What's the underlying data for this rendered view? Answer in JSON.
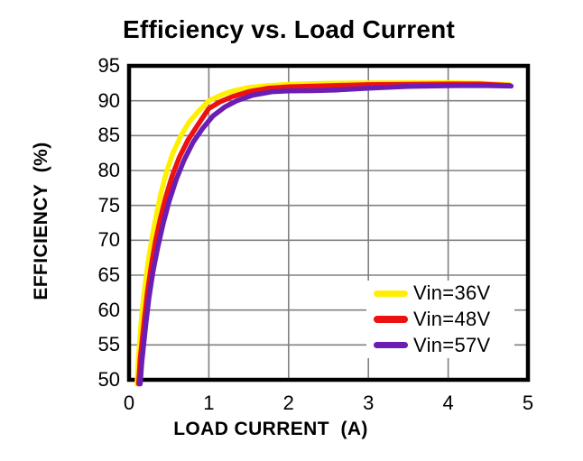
{
  "chart_data": {
    "type": "line",
    "title": "Efficiency vs. Load Current",
    "xlabel": "LOAD CURRENT  (A)",
    "ylabel": "EFFICIENCY  (%)",
    "xlim": [
      0,
      5
    ],
    "ylim": [
      50,
      95
    ],
    "xticks": [
      0,
      1,
      2,
      3,
      4,
      5
    ],
    "yticks": [
      50,
      55,
      60,
      65,
      70,
      75,
      80,
      85,
      90,
      95
    ],
    "grid": true,
    "grid_color": "#808080",
    "border_color": "#000000",
    "legend_position": "inside-lower-right",
    "series": [
      {
        "name": "Vin=36V",
        "color": "#FFF000",
        "points": [
          [
            0.1,
            49.4
          ],
          [
            0.12,
            53.5
          ],
          [
            0.16,
            59.5
          ],
          [
            0.2,
            63.5
          ],
          [
            0.24,
            67.0
          ],
          [
            0.29,
            70.5
          ],
          [
            0.34,
            73.5
          ],
          [
            0.4,
            76.8
          ],
          [
            0.47,
            79.8
          ],
          [
            0.55,
            82.5
          ],
          [
            0.65,
            85.0
          ],
          [
            0.75,
            86.9
          ],
          [
            0.87,
            88.5
          ],
          [
            1.0,
            90.0
          ],
          [
            1.15,
            90.8
          ],
          [
            1.3,
            91.4
          ],
          [
            1.5,
            91.9
          ],
          [
            1.75,
            92.2
          ],
          [
            2.0,
            92.35
          ],
          [
            2.5,
            92.5
          ],
          [
            3.0,
            92.55
          ],
          [
            3.5,
            92.6
          ],
          [
            4.0,
            92.6
          ],
          [
            4.4,
            92.5
          ],
          [
            4.77,
            92.3
          ]
        ]
      },
      {
        "name": "Vin=48V",
        "color": "#EE1111",
        "points": [
          [
            0.12,
            49.4
          ],
          [
            0.14,
            53.0
          ],
          [
            0.19,
            58.5
          ],
          [
            0.23,
            62.5
          ],
          [
            0.28,
            66.5
          ],
          [
            0.33,
            69.8
          ],
          [
            0.39,
            73.0
          ],
          [
            0.46,
            76.2
          ],
          [
            0.54,
            79.2
          ],
          [
            0.63,
            81.9
          ],
          [
            0.74,
            84.4
          ],
          [
            0.86,
            86.5
          ],
          [
            1.0,
            88.9
          ],
          [
            1.15,
            89.9
          ],
          [
            1.3,
            90.6
          ],
          [
            1.5,
            91.3
          ],
          [
            1.75,
            91.8
          ],
          [
            2.0,
            92.0
          ],
          [
            2.5,
            92.15
          ],
          [
            3.0,
            92.3
          ],
          [
            3.5,
            92.35
          ],
          [
            4.0,
            92.4
          ],
          [
            4.4,
            92.4
          ],
          [
            4.77,
            92.2
          ]
        ]
      },
      {
        "name": "Vin=57V",
        "color": "#6A1EB4",
        "points": [
          [
            0.14,
            49.4
          ],
          [
            0.16,
            52.5
          ],
          [
            0.21,
            58.0
          ],
          [
            0.25,
            61.8
          ],
          [
            0.3,
            65.5
          ],
          [
            0.36,
            69.0
          ],
          [
            0.43,
            72.5
          ],
          [
            0.5,
            75.5
          ],
          [
            0.59,
            78.7
          ],
          [
            0.69,
            81.5
          ],
          [
            0.8,
            84.0
          ],
          [
            0.92,
            86.0
          ],
          [
            1.05,
            87.8
          ],
          [
            1.2,
            89.1
          ],
          [
            1.35,
            90.0
          ],
          [
            1.55,
            90.8
          ],
          [
            1.8,
            91.3
          ],
          [
            2.0,
            91.4
          ],
          [
            2.3,
            91.45
          ],
          [
            2.6,
            91.55
          ],
          [
            3.0,
            91.8
          ],
          [
            3.5,
            92.05
          ],
          [
            4.0,
            92.15
          ],
          [
            4.4,
            92.2
          ],
          [
            4.79,
            92.1
          ]
        ]
      }
    ]
  }
}
